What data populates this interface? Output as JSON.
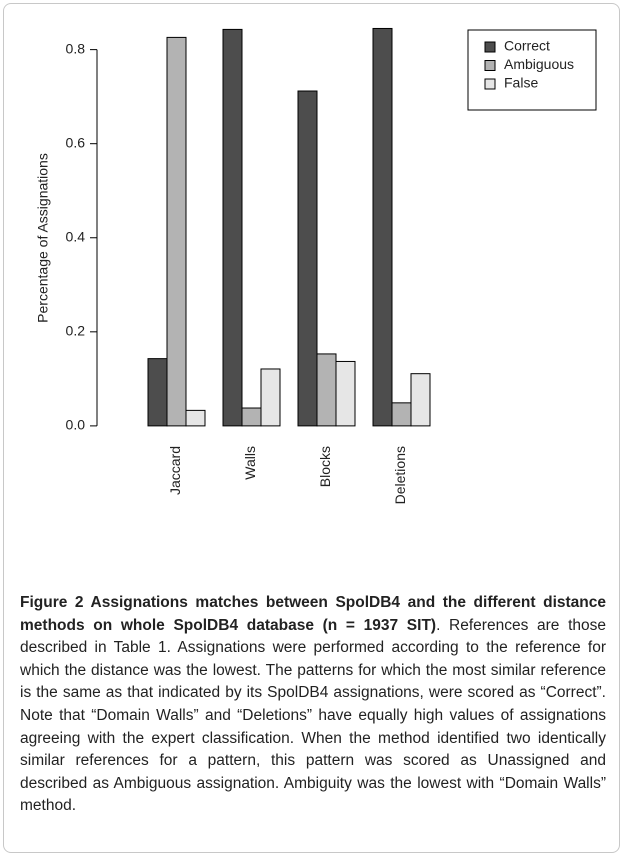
{
  "chart_data": {
    "type": "bar",
    "y_label": "Percentage of Assignations",
    "categories": [
      "Jaccard",
      "Walls",
      "Blocks",
      "Deletions"
    ],
    "series": [
      {
        "name": "Correct",
        "color": "#4d4d4d",
        "values": [
          0.143,
          0.843,
          0.712,
          0.845
        ]
      },
      {
        "name": "Ambiguous",
        "color": "#b3b3b3",
        "values": [
          0.826,
          0.038,
          0.153,
          0.049
        ]
      },
      {
        "name": "False",
        "color": "#e6e6e6",
        "values": [
          0.033,
          0.121,
          0.137,
          0.111
        ]
      }
    ],
    "ylim": [
      -0.03,
      0.88
    ],
    "yticks": [
      {
        "value": 0,
        "label": "0.0"
      },
      0.2,
      0.4,
      0.6,
      0.8
    ],
    "legend": "top-right"
  },
  "caption": {
    "title": "Figure 2 Assignations matches between SpolDB4 and the different distance methods on whole SpolDB4 database (n = 1937 SIT)",
    "text": ". References are those described in Table 1. Assignations were performed according to the reference for which the distance was the lowest. The patterns for which the most similar reference is the same as that indicated by its SpolDB4 assignations, were scored as “Correct”. Note that “Domain Walls” and “Deletions” have equally high values of assignations agreeing with the expert classification. When the method identified two identically similar references for a pattern, this pattern was scored as Unassigned and described as Ambiguous assignation. Ambiguity was the lowest with “Domain Walls” method."
  }
}
